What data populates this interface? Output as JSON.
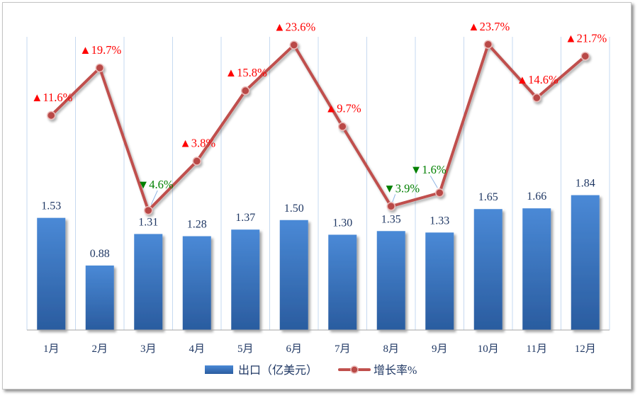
{
  "chart_data": {
    "type": "bar",
    "categories": [
      "1月",
      "2月",
      "3月",
      "4月",
      "5月",
      "6月",
      "7月",
      "8月",
      "9月",
      "10月",
      "11月",
      "12月"
    ],
    "series": [
      {
        "name": "出口（亿美元）",
        "type": "bar",
        "axis": "primary",
        "values": [
          1.53,
          0.88,
          1.31,
          1.28,
          1.37,
          1.5,
          1.3,
          1.35,
          1.33,
          1.65,
          1.66,
          1.84
        ],
        "labels": [
          "1.53",
          "0.88",
          "1.31",
          "1.28",
          "1.37",
          "1.50",
          "1.30",
          "1.35",
          "1.33",
          "1.65",
          "1.66",
          "1.84"
        ]
      },
      {
        "name": "增长率%",
        "type": "line",
        "axis": "secondary",
        "values": [
          11.6,
          19.7,
          -4.6,
          3.8,
          15.8,
          23.6,
          9.7,
          -3.9,
          -1.6,
          23.7,
          14.6,
          21.7
        ],
        "labels": [
          "▲11.6%",
          "▲19.7%",
          "▼4.6%",
          "▲3.8%",
          "▲15.8%",
          "▲23.6%",
          "▲9.7%",
          "▼3.9%",
          "▼1.6%",
          "▲23.7%",
          "▲14.6%",
          "▲21.7%"
        ]
      }
    ],
    "ylim": [
      0,
      4
    ],
    "y2lim": [
      -25,
      25
    ],
    "grid": "vertical",
    "legend": "bottom",
    "colors": {
      "bar_top": "#4a89d6",
      "bar_bottom": "#2a5c9f",
      "line": "#c0504d",
      "marker": "#b94a47",
      "marker_ring": "#ebbcba",
      "label_up": "#ff0000",
      "label_down": "#008000",
      "leader": "#8eb4e3",
      "grid": "#c6d9f0",
      "axis": "#a6a6a6",
      "text": "#203864"
    }
  }
}
